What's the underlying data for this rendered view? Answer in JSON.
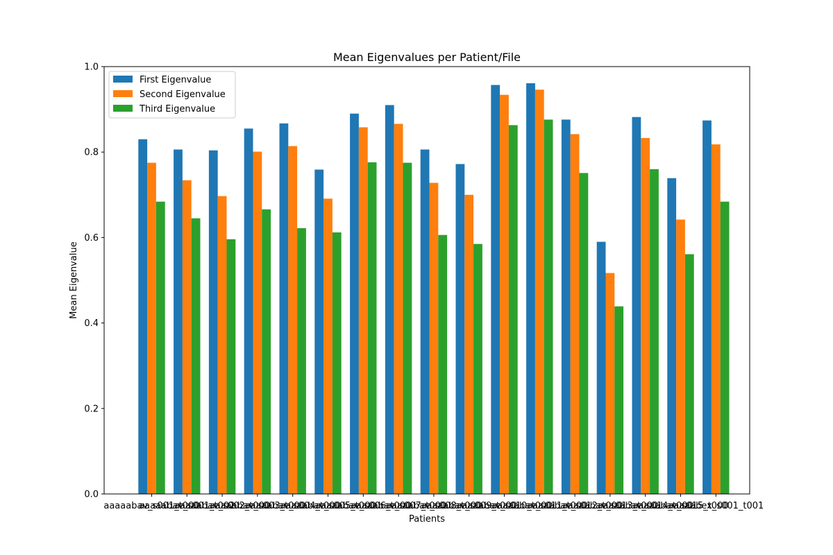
{
  "chart_data": {
    "type": "bar",
    "title": "Mean Eigenvalues per Patient/File",
    "xlabel": "Patients",
    "ylabel": "Mean Eigenvalue",
    "ylim": [
      0,
      1.0
    ],
    "yticks": [
      "0.0",
      "0.2",
      "0.4",
      "0.6",
      "0.8",
      "1.0"
    ],
    "legend_position": "top-left",
    "grid": false,
    "categories": [
      "aaaaabav_s001_t000",
      "aaaaabav_s001_t002",
      "aaaaabav_s002_t000",
      "aaaaabav_s003_t000",
      "aaaaabav_s004_t000",
      "aaaaabav_s005_t000",
      "aaaaabav_s006_t000",
      "aaaaabav_s007_t000",
      "aaaaabav_s008_t000",
      "aaaaabav_s009_t000",
      "aaaaabav_s010_t000",
      "aaaaabav_s011_t000",
      "aaaaabav_s012_t000",
      "aaaaabav_s013_t000",
      "aaaaabav_s014_t000",
      "aaaaabav_s015_t000",
      "aaaaabex_s001_t001"
    ],
    "series": [
      {
        "name": "First Eigenvalue",
        "color": "#1f77b4",
        "values": [
          0.83,
          0.806,
          0.804,
          0.855,
          0.867,
          0.759,
          0.89,
          0.91,
          0.806,
          0.772,
          0.957,
          0.961,
          0.876,
          0.59,
          0.882,
          0.739,
          0.874
        ]
      },
      {
        "name": "Second Eigenvalue",
        "color": "#ff7f0e",
        "values": [
          0.775,
          0.734,
          0.697,
          0.801,
          0.814,
          0.691,
          0.858,
          0.866,
          0.728,
          0.7,
          0.934,
          0.946,
          0.842,
          0.517,
          0.833,
          0.642,
          0.818
        ]
      },
      {
        "name": "Third Eigenvalue",
        "color": "#2ca02c",
        "values": [
          0.684,
          0.645,
          0.596,
          0.666,
          0.622,
          0.612,
          0.776,
          0.775,
          0.606,
          0.585,
          0.863,
          0.876,
          0.751,
          0.439,
          0.76,
          0.561,
          0.684
        ]
      }
    ]
  }
}
